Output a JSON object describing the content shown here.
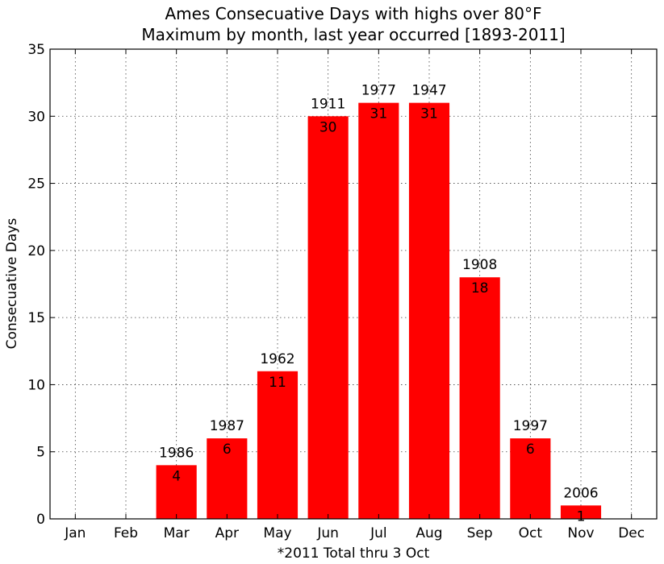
{
  "chart_data": {
    "type": "bar",
    "title": "Ames Consecuative Days with highs over 80°F",
    "subtitle": "Maximum by month, last year occurred [1893-2011]",
    "ylabel": "Consecuative Days",
    "xlabel": "*2011 Total thru 3 Oct",
    "categories": [
      "Jan",
      "Feb",
      "Mar",
      "Apr",
      "May",
      "Jun",
      "Jul",
      "Aug",
      "Sep",
      "Oct",
      "Nov",
      "Dec"
    ],
    "values": [
      0,
      0,
      4,
      6,
      11,
      30,
      31,
      31,
      18,
      6,
      1,
      0
    ],
    "years": [
      "",
      "",
      "1986",
      "1987",
      "1962",
      "1911",
      "1977",
      "1947",
      "1908",
      "1997",
      "2006",
      ""
    ],
    "value_labels": [
      "",
      "",
      "4",
      "6",
      "11",
      "30",
      "31",
      "31",
      "18",
      "6",
      "1",
      ""
    ],
    "ylim": [
      0,
      35
    ],
    "yticks": [
      0,
      5,
      10,
      15,
      20,
      25,
      30,
      35
    ],
    "grid": true,
    "bar_color": "#ff0000"
  }
}
